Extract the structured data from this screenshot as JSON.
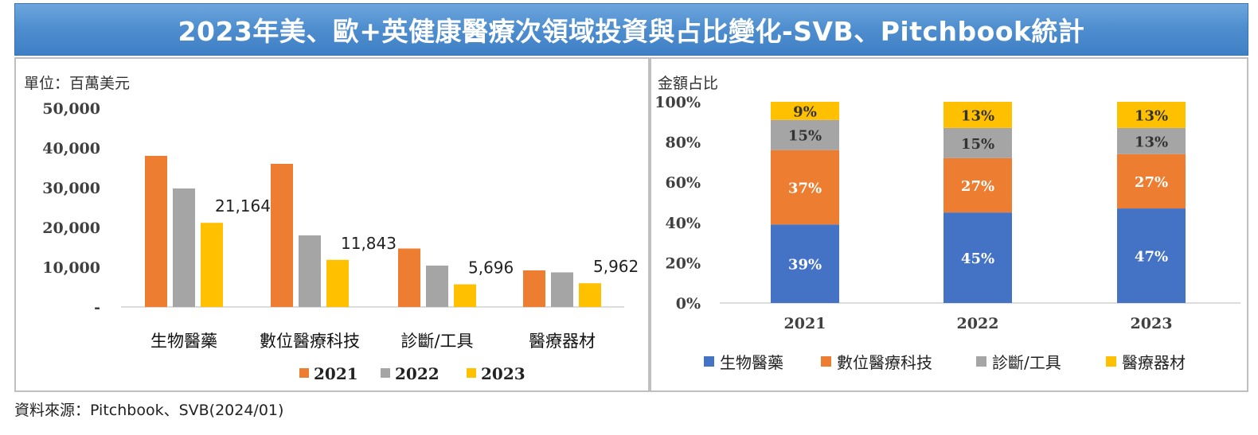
{
  "header": {
    "title": "2023年美、歐+英健康醫療次領域投資與占比變化-SVB、Pitchbook統計"
  },
  "left_panel": {
    "unit_label": "單位：百萬美元"
  },
  "right_panel": {
    "share_label": "金額占比"
  },
  "source": "資料來源：Pitchbook、SVB(2024/01)",
  "colors": {
    "y2021": "#ed7d31",
    "y2022": "#a5a5a5",
    "y2023": "#ffc000",
    "biopharma": "#4472c4",
    "digital": "#ed7d31",
    "diagnostics": "#a5a5a5",
    "devices": "#ffc000"
  },
  "chart_data": [
    {
      "type": "bar",
      "categories": [
        "生物醫藥",
        "數位醫療科技",
        "診斷/工具",
        "醫療器材"
      ],
      "series": [
        {
          "name": "2021",
          "values": [
            38000,
            36000,
            14700,
            9200
          ]
        },
        {
          "name": "2022",
          "values": [
            29800,
            18000,
            10400,
            8700
          ]
        },
        {
          "name": "2023",
          "values": [
            21164,
            11843,
            5696,
            5962
          ]
        }
      ],
      "data_labels": [
        "21,164",
        "11,843",
        "5,696",
        "5,962"
      ],
      "ylim": [
        0,
        50000
      ],
      "yticks": [
        "-",
        "10,000",
        "20,000",
        "30,000",
        "40,000",
        "50,000"
      ],
      "legend": "bottom",
      "grid": false
    },
    {
      "type": "bar",
      "stacked": true,
      "categories": [
        "2021",
        "2022",
        "2023"
      ],
      "series": [
        {
          "name": "生物醫藥",
          "values": [
            39,
            45,
            47
          ],
          "labels": [
            "39%",
            "45%",
            "47%"
          ]
        },
        {
          "name": "數位醫療科技",
          "values": [
            37,
            27,
            27
          ],
          "labels": [
            "37%",
            "27%",
            "27%"
          ]
        },
        {
          "name": "診斷/工具",
          "values": [
            15,
            15,
            13
          ],
          "labels": [
            "15%",
            "15%",
            "13%"
          ]
        },
        {
          "name": "醫療器材",
          "values": [
            9,
            13,
            13
          ],
          "labels": [
            "9%",
            "13%",
            "13%"
          ]
        }
      ],
      "ylim": [
        0,
        100
      ],
      "yticks": [
        "0%",
        "20%",
        "40%",
        "60%",
        "80%",
        "100%"
      ],
      "legend": "bottom",
      "grid": false
    }
  ]
}
